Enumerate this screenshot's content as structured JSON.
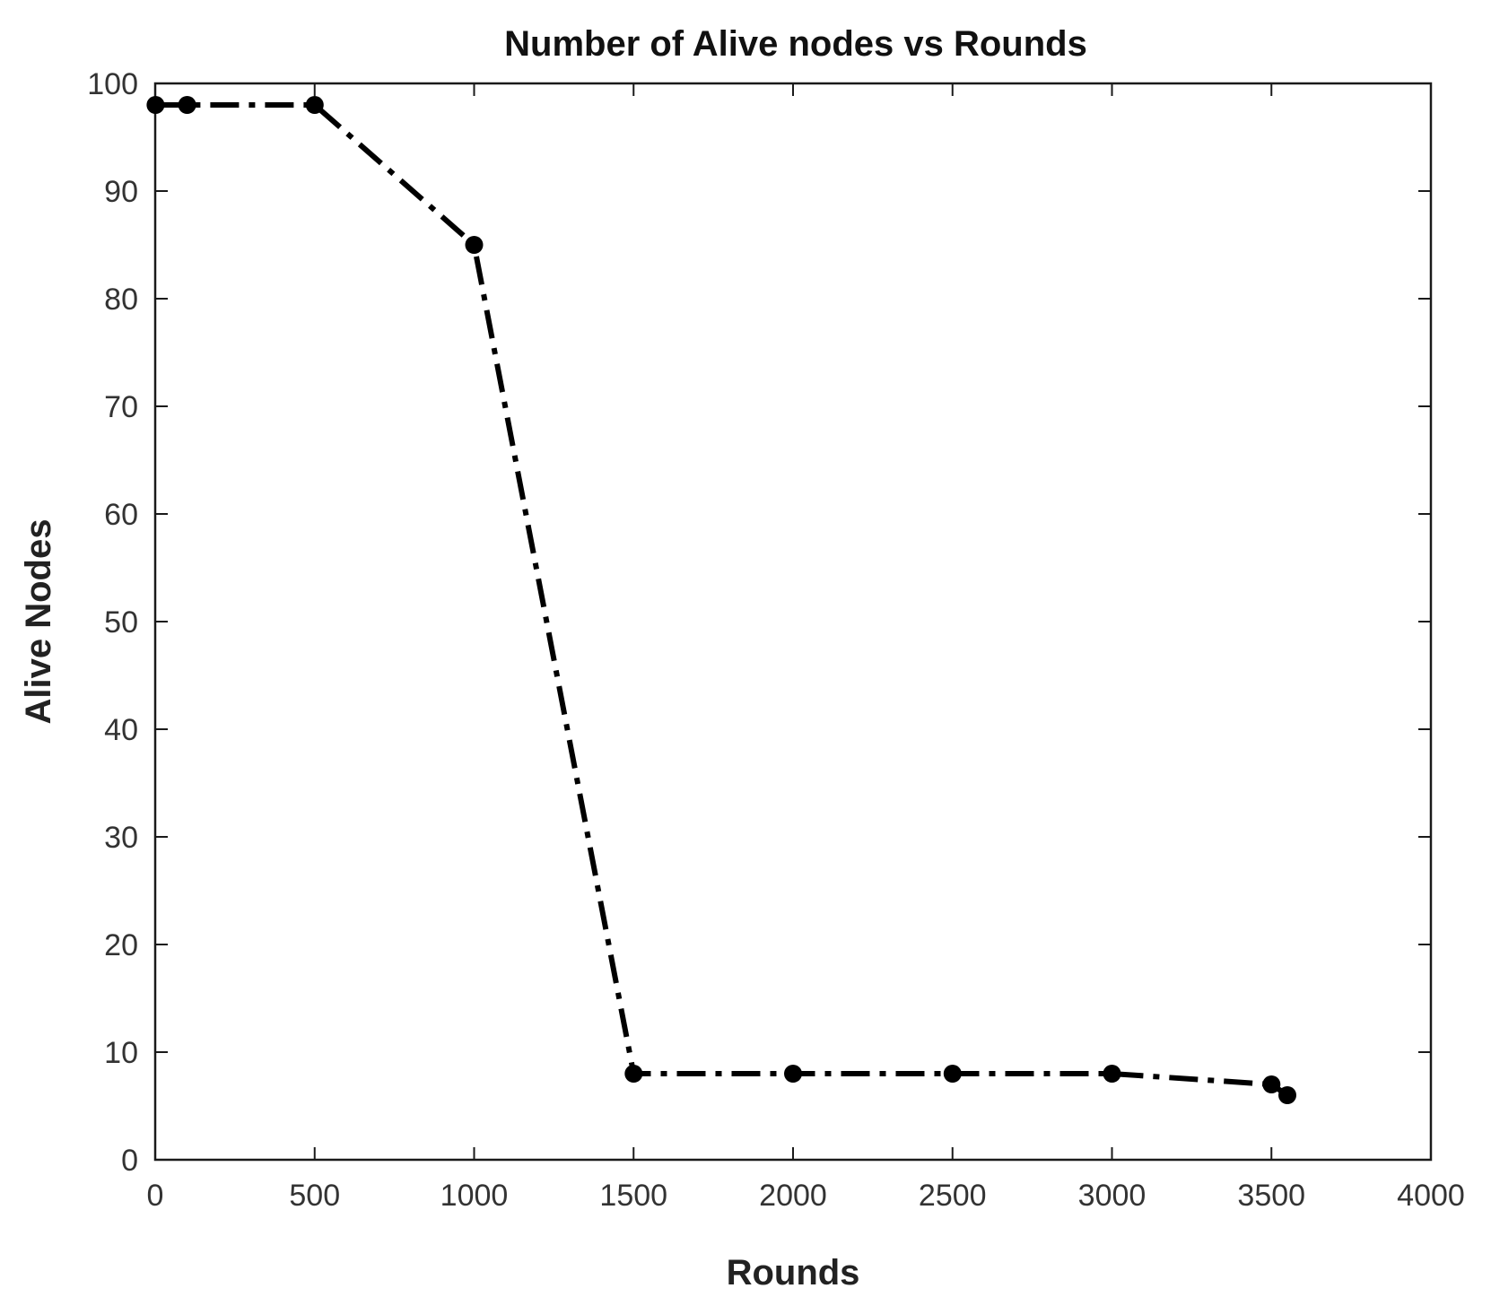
{
  "chart_data": {
    "type": "line",
    "title": "Number of Alive nodes vs Rounds",
    "xlabel": "Rounds",
    "ylabel": "Alive Nodes",
    "xlim": [
      0,
      4000
    ],
    "ylim": [
      0,
      100
    ],
    "xticks": [
      0,
      500,
      1000,
      1500,
      2000,
      2500,
      3000,
      3500,
      4000
    ],
    "yticks": [
      0,
      10,
      20,
      30,
      40,
      50,
      60,
      70,
      80,
      90,
      100
    ],
    "grid": false,
    "line_style": "dash-dot",
    "marker": "filled-circle",
    "color": "#000000",
    "series": [
      {
        "x": [
          1,
          100,
          500,
          1000,
          1500,
          2000,
          2500,
          3000,
          3500,
          3550
        ],
        "y": [
          98,
          98,
          98,
          85,
          8,
          8,
          8,
          8,
          7,
          6
        ]
      }
    ]
  }
}
